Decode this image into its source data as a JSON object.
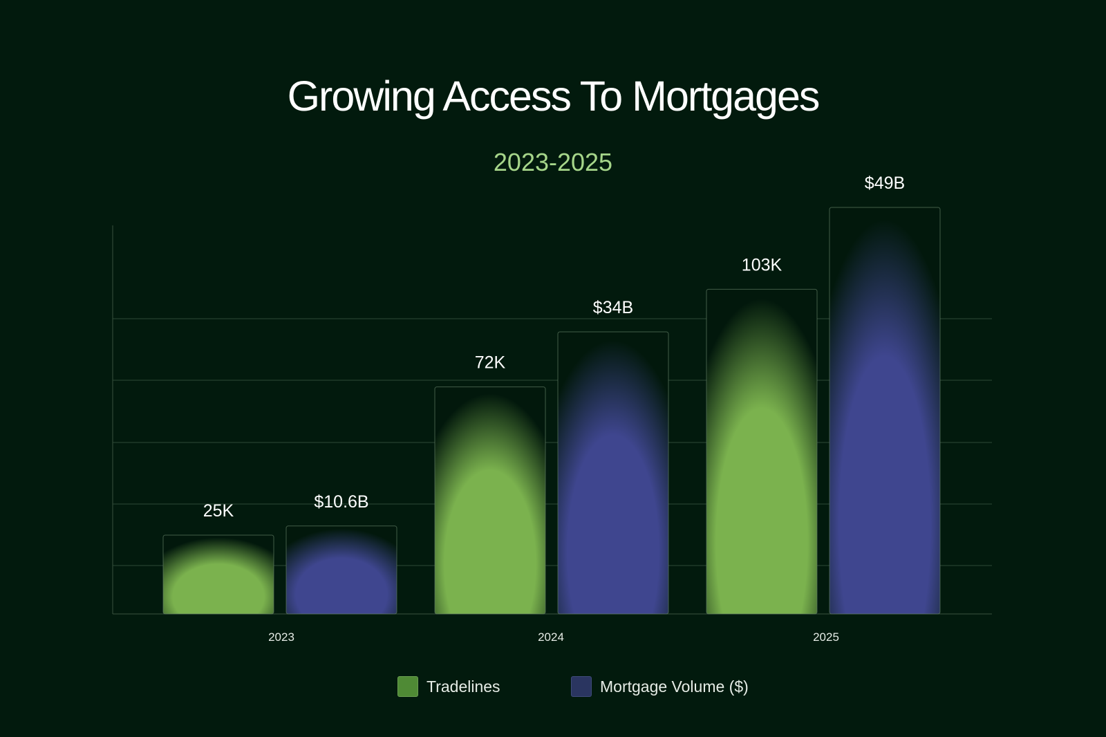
{
  "chart_data": {
    "type": "bar",
    "title": "Growing Access To Mortgages",
    "subtitle": "2023-2025",
    "categories": [
      "2023",
      "2024",
      "2025"
    ],
    "series": [
      {
        "name": "Tradelines",
        "values": [
          25,
          72,
          103
        ],
        "labels": [
          "25K",
          "72K",
          "103K"
        ],
        "color": "#7bb24e"
      },
      {
        "name": "Mortgage Volume ($)",
        "values": [
          10.6,
          34,
          49
        ],
        "labels": [
          "$10.6B",
          "$34B",
          "$49B"
        ],
        "color": "#3f468f"
      }
    ],
    "xlabel": "",
    "ylabel": "",
    "grid": true,
    "legend_position": "bottom"
  }
}
